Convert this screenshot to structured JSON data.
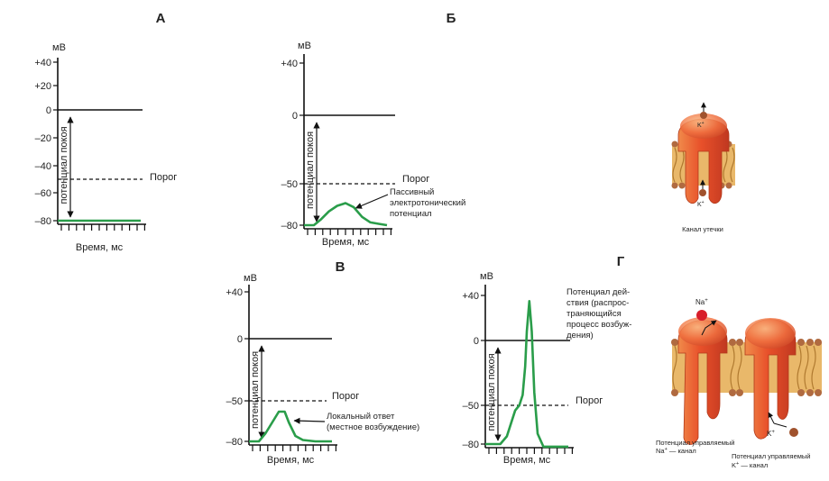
{
  "colors": {
    "curve": "#2a9d4a",
    "axis": "#111111",
    "membrane_protein": "#e8502a",
    "protein_light": "#f6a06a",
    "lipid_head": "#b06a40",
    "lipid_tail": "#d9a24a",
    "ion_k": "#a0522d",
    "ion_na": "#d81e2a"
  },
  "common": {
    "unit": "мВ",
    "xlabel": "Время, мс",
    "threshold_label": "Порог",
    "resting_label": "потенциал покоя"
  },
  "chart_data": [
    {
      "type": "line",
      "panel_letter": "А",
      "ylabel": "мВ",
      "xlabel": "Время, мс",
      "yticks": [
        40,
        20,
        0,
        -20,
        -40,
        -60,
        -80
      ],
      "ytick_labels": [
        "+40",
        "+20",
        "0",
        "–20",
        "–40",
        "–60",
        "–80"
      ],
      "ylim": [
        -80,
        45
      ],
      "xlim": [
        0,
        10
      ],
      "threshold": -50,
      "threshold_label": "Порог",
      "resting": -80,
      "resting_label": "потенциал покоя",
      "series": [
        {
          "x": [
            0,
            10
          ],
          "y": [
            -80,
            -80
          ]
        }
      ],
      "annotations": []
    },
    {
      "type": "line",
      "panel_letter": "Б",
      "ylabel": "мВ",
      "xlabel": "Время, мс",
      "yticks": [
        40,
        0,
        -50,
        -80
      ],
      "ytick_labels": [
        "+40",
        "0",
        "–50",
        "–80"
      ],
      "ylim": [
        -80,
        45
      ],
      "xlim": [
        0,
        10
      ],
      "threshold": -50,
      "threshold_label": "Порог",
      "resting": -80,
      "resting_label": "потенциал покоя",
      "series": [
        {
          "x": [
            0,
            1.2,
            2,
            3,
            4,
            5,
            6,
            7,
            8,
            9,
            10
          ],
          "y": [
            -80,
            -80,
            -76,
            -70,
            -66,
            -64,
            -67,
            -74,
            -78,
            -79,
            -80
          ]
        }
      ],
      "annotations": [
        {
          "lines": [
            "Пассивный",
            "электротонический",
            "потенциал"
          ],
          "x": 5.6,
          "y": -65
        }
      ]
    },
    {
      "type": "line",
      "panel_letter": "В",
      "ylabel": "мВ",
      "xlabel": "Время, мс",
      "yticks": [
        40,
        0,
        -50,
        -80
      ],
      "ytick_labels": [
        "+40",
        "0",
        "–50",
        "–80"
      ],
      "ylim": [
        -80,
        45
      ],
      "xlim": [
        0,
        10
      ],
      "threshold": -50,
      "threshold_label": "Порог",
      "resting": -80,
      "resting_label": "потенциал покоя",
      "series": [
        {
          "x": [
            0,
            1.2,
            2,
            3,
            3.6,
            4.3,
            4.8,
            5.6,
            6.5,
            8,
            10
          ],
          "y": [
            -80,
            -80,
            -74,
            -64,
            -58,
            -58,
            -66,
            -76,
            -79,
            -80,
            -80
          ]
        }
      ],
      "annotations": [
        {
          "lines": [
            "Локальный ответ",
            "(местное возбуждение)"
          ],
          "x": 4.8,
          "y": -62
        }
      ]
    },
    {
      "type": "line",
      "panel_letter": "Г",
      "ylabel": "мВ",
      "xlabel": "Время, мс",
      "yticks": [
        40,
        0,
        -50,
        -80
      ],
      "ytick_labels": [
        "+40",
        "0",
        "–50",
        "–80"
      ],
      "ylim": [
        -80,
        45
      ],
      "xlim": [
        0,
        10
      ],
      "threshold": -50,
      "threshold_label": "Порог",
      "resting": -80,
      "resting_label": "потенциал покоя",
      "series": [
        {
          "x": [
            0,
            1.8,
            2.6,
            3.2,
            3.6,
            4.1,
            4.5,
            4.8,
            5.0,
            5.3,
            5.6,
            5.9,
            6.3,
            7.0,
            8,
            10
          ],
          "y": [
            -80,
            -80,
            -74,
            -62,
            -54,
            -50,
            -42,
            -20,
            8,
            35,
            8,
            -40,
            -72,
            -82,
            -82,
            -82
          ]
        }
      ],
      "annotations": [
        {
          "lines": [
            "Потенциал дей-",
            "ствия (распрос-",
            "траняющийся",
            "процесс возбуж-",
            "дения)"
          ],
          "x": 5.3,
          "y": 35
        }
      ]
    }
  ],
  "channels": {
    "leak": {
      "caption": "Канал утечки",
      "ion_top": "K+",
      "ion_bottom": "K+",
      "ion_base": "K",
      "ion_sup": "+"
    },
    "na": {
      "caption_line1": "Потенциал управляемый",
      "caption_line2": "Na+ — канал",
      "caption_line2_base": "Na",
      "caption_line2_sup": "+",
      "caption_line2_rest": " — канал",
      "ion_label": "Na+",
      "ion_base": "Na",
      "ion_sup": "+"
    },
    "k": {
      "caption_line1": "Потенциал управляемый",
      "caption_line2": "K+ — канал",
      "caption_line2_base": "K",
      "caption_line2_sup": "+",
      "caption_line2_rest": " — канал",
      "ion_label": "K+",
      "ion_base": "K",
      "ion_sup": "+"
    }
  }
}
